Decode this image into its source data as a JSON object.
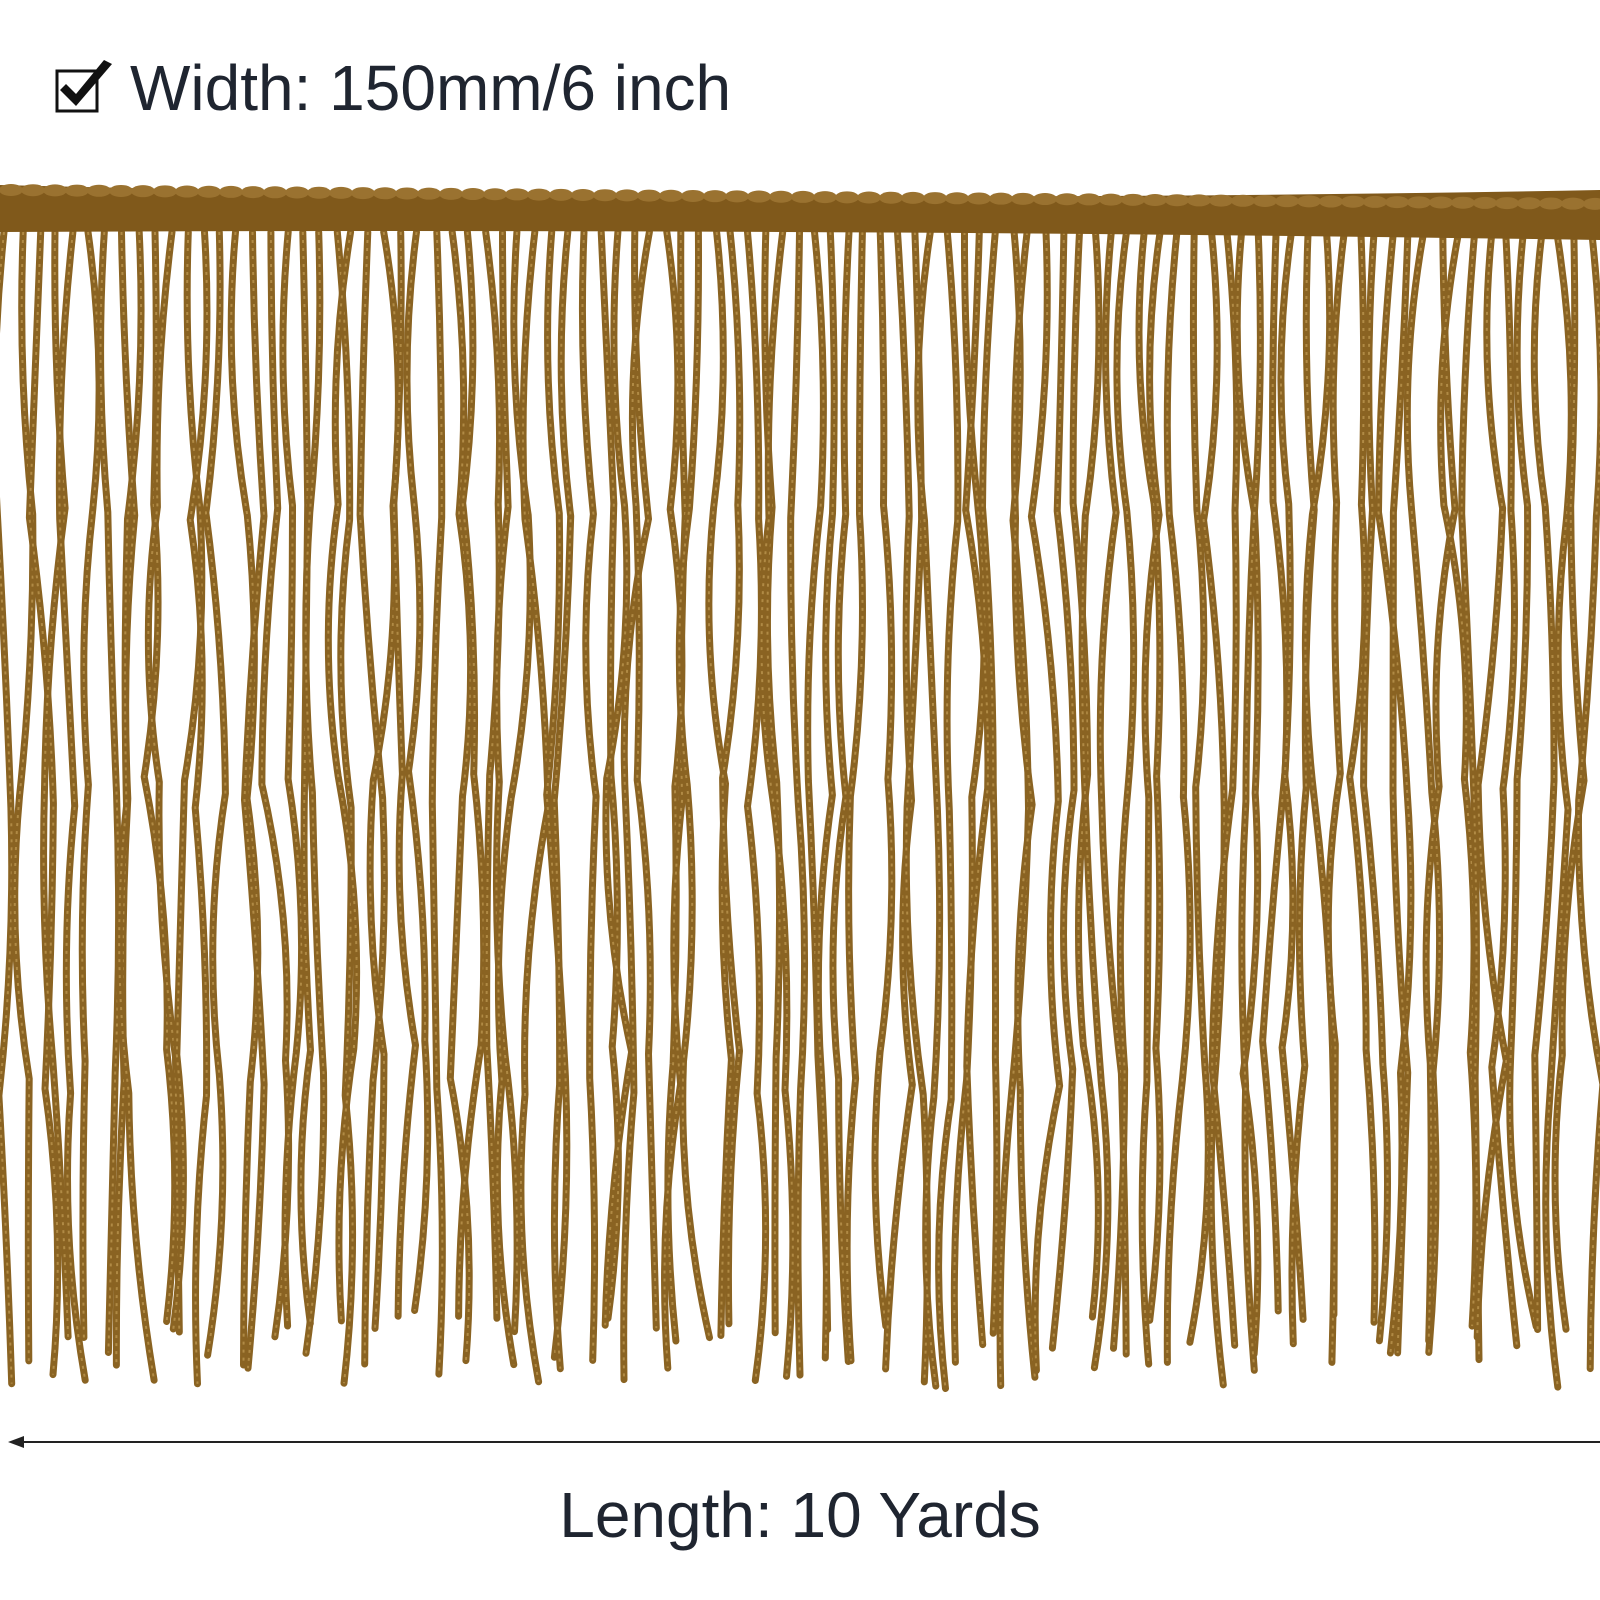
{
  "header": {
    "text": "Width: 150mm/6 inch"
  },
  "footer": {
    "text": "Length: 10 Yards"
  }
}
